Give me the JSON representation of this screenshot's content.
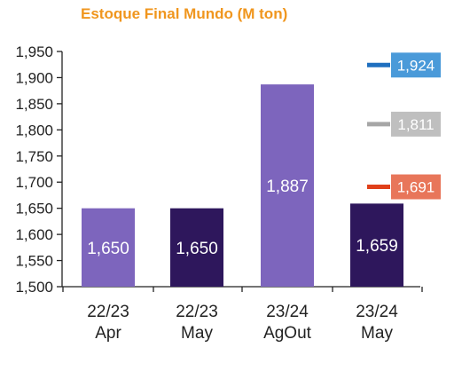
{
  "chart_data": {
    "type": "bar",
    "title": "Estoque Final Mundo (M ton)",
    "categories": [
      [
        "22/23",
        "Apr"
      ],
      [
        "22/23",
        "May"
      ],
      [
        "23/24",
        "AgOut"
      ],
      [
        "23/24",
        "May"
      ]
    ],
    "values": [
      1650,
      1650,
      1887,
      1659
    ],
    "value_labels": [
      "1,650",
      "1,650",
      "1,887",
      "1,659"
    ],
    "bar_colors": [
      "#7D65BD",
      "#2E175C",
      "#7D65BD",
      "#2E175C"
    ],
    "ylim": [
      1500,
      1950
    ],
    "yticks": [
      1500,
      1550,
      1600,
      1650,
      1700,
      1750,
      1800,
      1850,
      1900,
      1950
    ],
    "ytick_labels": [
      "1,500",
      "1,550",
      "1,600",
      "1,650",
      "1,700",
      "1,750",
      "1,800",
      "1,850",
      "1,900",
      "1,950"
    ],
    "grid": false,
    "reference_markers": [
      {
        "value": 1924,
        "label": "1,924",
        "line_color": "#1F6FBF",
        "box_color": "#4A9AD9"
      },
      {
        "value": 1811,
        "label": "1,811",
        "line_color": "#A6A6A6",
        "box_color": "#BFBFBF"
      },
      {
        "value": 1691,
        "label": "1,691",
        "line_color": "#E0401A",
        "box_color": "#E8765A"
      }
    ]
  }
}
